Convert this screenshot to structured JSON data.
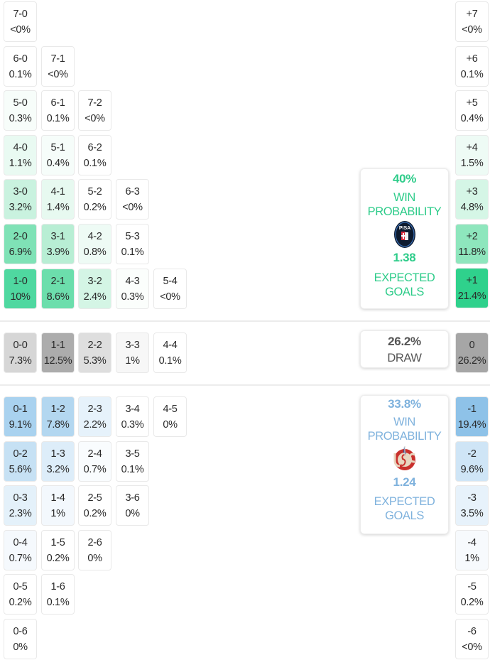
{
  "colors": {
    "home_accent": "#2ecc8a",
    "away_accent": "#7fb2dd",
    "draw_text": "#555555"
  },
  "home_scores": [
    [
      {
        "score": "7-0",
        "prob": "<0%",
        "bg": "#ffffff"
      }
    ],
    [
      {
        "score": "6-0",
        "prob": "0.1%",
        "bg": "#ffffff"
      },
      {
        "score": "7-1",
        "prob": "<0%",
        "bg": "#ffffff"
      }
    ],
    [
      {
        "score": "5-0",
        "prob": "0.3%",
        "bg": "#f7fdfa"
      },
      {
        "score": "6-1",
        "prob": "0.1%",
        "bg": "#ffffff"
      },
      {
        "score": "7-2",
        "prob": "<0%",
        "bg": "#ffffff"
      }
    ],
    [
      {
        "score": "4-0",
        "prob": "1.1%",
        "bg": "#e9faf2"
      },
      {
        "score": "5-1",
        "prob": "0.4%",
        "bg": "#f6fdfa"
      },
      {
        "score": "6-2",
        "prob": "0.1%",
        "bg": "#ffffff"
      }
    ],
    [
      {
        "score": "3-0",
        "prob": "3.2%",
        "bg": "#c9f2df"
      },
      {
        "score": "4-1",
        "prob": "1.4%",
        "bg": "#e7f9f0"
      },
      {
        "score": "5-2",
        "prob": "0.2%",
        "bg": "#ffffff"
      },
      {
        "score": "6-3",
        "prob": "<0%",
        "bg": "#ffffff"
      }
    ],
    [
      {
        "score": "2-0",
        "prob": "6.9%",
        "bg": "#7fe2b6"
      },
      {
        "score": "3-1",
        "prob": "3.9%",
        "bg": "#b8eed4"
      },
      {
        "score": "4-2",
        "prob": "0.8%",
        "bg": "#eefbf5"
      },
      {
        "score": "5-3",
        "prob": "0.1%",
        "bg": "#ffffff"
      }
    ],
    [
      {
        "score": "1-0",
        "prob": "10%",
        "bg": "#4fd8a0"
      },
      {
        "score": "2-1",
        "prob": "8.6%",
        "bg": "#6cdeac"
      },
      {
        "score": "3-2",
        "prob": "2.4%",
        "bg": "#d4f5e5"
      },
      {
        "score": "4-3",
        "prob": "0.3%",
        "bg": "#fbfefc"
      },
      {
        "score": "5-4",
        "prob": "<0%",
        "bg": "#ffffff"
      }
    ]
  ],
  "draw_scores": [
    {
      "score": "0-0",
      "prob": "7.3%",
      "bg": "#d6d6d6"
    },
    {
      "score": "1-1",
      "prob": "12.5%",
      "bg": "#acacac"
    },
    {
      "score": "2-2",
      "prob": "5.3%",
      "bg": "#dedede"
    },
    {
      "score": "3-3",
      "prob": "1%",
      "bg": "#f7f7f7"
    },
    {
      "score": "4-4",
      "prob": "0.1%",
      "bg": "#ffffff"
    }
  ],
  "away_scores": [
    [
      {
        "score": "0-1",
        "prob": "9.1%",
        "bg": "#a9d2ef"
      },
      {
        "score": "1-2",
        "prob": "7.8%",
        "bg": "#b3d7f0"
      },
      {
        "score": "2-3",
        "prob": "2.2%",
        "bg": "#e6f2fb"
      },
      {
        "score": "3-4",
        "prob": "0.3%",
        "bg": "#ffffff"
      },
      {
        "score": "4-5",
        "prob": "0%",
        "bg": "#ffffff"
      }
    ],
    [
      {
        "score": "0-2",
        "prob": "5.6%",
        "bg": "#c6e1f4"
      },
      {
        "score": "1-3",
        "prob": "3.2%",
        "bg": "#ddedf9"
      },
      {
        "score": "2-4",
        "prob": "0.7%",
        "bg": "#f9fcfe"
      },
      {
        "score": "3-5",
        "prob": "0.1%",
        "bg": "#ffffff"
      }
    ],
    [
      {
        "score": "0-3",
        "prob": "2.3%",
        "bg": "#e4f1fa"
      },
      {
        "score": "1-4",
        "prob": "1%",
        "bg": "#f3f8fd"
      },
      {
        "score": "2-5",
        "prob": "0.2%",
        "bg": "#ffffff"
      },
      {
        "score": "3-6",
        "prob": "0%",
        "bg": "#ffffff"
      }
    ],
    [
      {
        "score": "0-4",
        "prob": "0.7%",
        "bg": "#f5f9fd"
      },
      {
        "score": "1-5",
        "prob": "0.2%",
        "bg": "#ffffff"
      },
      {
        "score": "2-6",
        "prob": "0%",
        "bg": "#ffffff"
      }
    ],
    [
      {
        "score": "0-5",
        "prob": "0.2%",
        "bg": "#ffffff"
      },
      {
        "score": "1-6",
        "prob": "0.1%",
        "bg": "#ffffff"
      }
    ],
    [
      {
        "score": "0-6",
        "prob": "0%",
        "bg": "#ffffff"
      }
    ]
  ],
  "margins": [
    {
      "label": "+7",
      "prob": "<0%",
      "bg": "#ffffff"
    },
    {
      "label": "+6",
      "prob": "0.1%",
      "bg": "#ffffff"
    },
    {
      "label": "+5",
      "prob": "0.4%",
      "bg": "#ffffff"
    },
    {
      "label": "+4",
      "prob": "1.5%",
      "bg": "#eefbf5"
    },
    {
      "label": "+3",
      "prob": "4.8%",
      "bg": "#d5f6e6"
    },
    {
      "label": "+2",
      "prob": "11.8%",
      "bg": "#8ee6bd"
    },
    {
      "label": "+1",
      "prob": "21.4%",
      "bg": "#2fd18c"
    },
    {
      "label": "0",
      "prob": "26.2%",
      "bg": "#a6a6a6"
    },
    {
      "label": "-1",
      "prob": "19.4%",
      "bg": "#8ec2e8"
    },
    {
      "label": "-2",
      "prob": "9.6%",
      "bg": "#cfe5f6"
    },
    {
      "label": "-3",
      "prob": "3.5%",
      "bg": "#e7f2fb"
    },
    {
      "label": "-4",
      "prob": "1%",
      "bg": "#f7fafd"
    },
    {
      "label": "-5",
      "prob": "0.2%",
      "bg": "#ffffff"
    },
    {
      "label": "-6",
      "prob": "<0%",
      "bg": "#ffffff"
    }
  ],
  "home_card": {
    "win_pct": "40%",
    "win_label_1": "WIN",
    "win_label_2": "PROBABILITY",
    "team_logo": "pisa-crest-icon",
    "xg": "1.38",
    "xg_label_1": "EXPECTED",
    "xg_label_2": "GOALS"
  },
  "draw_card": {
    "pct": "26.2%",
    "label": "DRAW"
  },
  "away_card": {
    "win_pct": "33.8%",
    "win_label_1": "WIN",
    "win_label_2": "PROBABILITY",
    "team_logo": "cremonese-crest-icon",
    "xg": "1.24",
    "xg_label_1": "EXPECTED",
    "xg_label_2": "GOALS"
  }
}
